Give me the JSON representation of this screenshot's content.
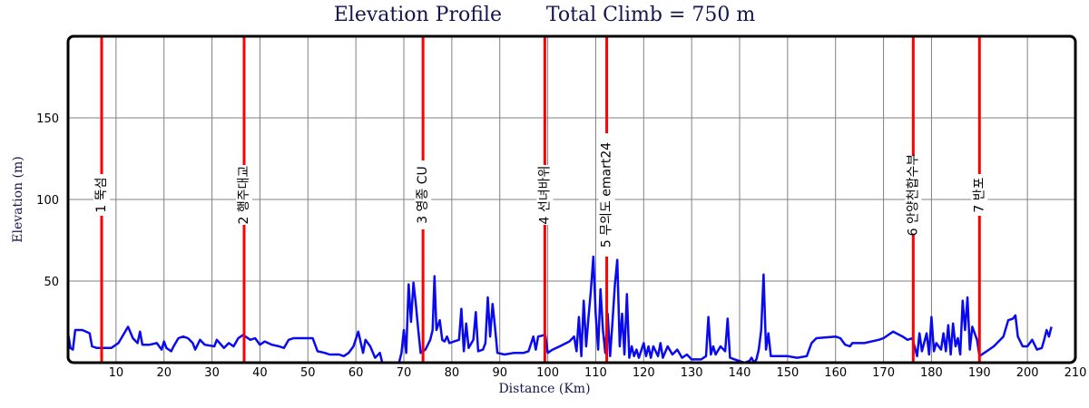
{
  "chart_data": {
    "type": "line",
    "title": "Elevation Profile       Total Climb = 750 m",
    "xlabel": "Distance (Km)",
    "ylabel": "Elevation (m)",
    "xlim": [
      0,
      210
    ],
    "ylim": [
      0,
      200
    ],
    "x_ticks": [
      10,
      20,
      30,
      40,
      50,
      60,
      70,
      80,
      90,
      100,
      110,
      120,
      130,
      140,
      150,
      160,
      170,
      180,
      190,
      200,
      210
    ],
    "y_ticks": [
      50,
      100,
      150
    ],
    "grid": true,
    "colors": {
      "line": "#0a0af0",
      "marker": "#ff0000",
      "grid": "#808080",
      "frame": "#000000",
      "text": "#141450"
    },
    "markers": [
      {
        "x": 7,
        "label": "1 뚝섬"
      },
      {
        "x": 36.7,
        "label": "2 행주대교"
      },
      {
        "x": 74,
        "label": "3 영종 CU"
      },
      {
        "x": 99.4,
        "label": "4 선녀바위"
      },
      {
        "x": 112.3,
        "label": "5 무의도 emart24"
      },
      {
        "x": 176.2,
        "label": "6 안양천합수부"
      },
      {
        "x": 190,
        "label": "7 반포"
      }
    ],
    "series": [
      {
        "values": [
          [
            0,
            18
          ],
          [
            0.5,
            9
          ],
          [
            1,
            8
          ],
          [
            1.5,
            20
          ],
          [
            3,
            20
          ],
          [
            4.5,
            18
          ],
          [
            5,
            10
          ],
          [
            6,
            9
          ],
          [
            9,
            9
          ],
          [
            10.5,
            12
          ],
          [
            11.5,
            17
          ],
          [
            12.5,
            22
          ],
          [
            13.5,
            15
          ],
          [
            14.5,
            12
          ],
          [
            15,
            19
          ],
          [
            15.5,
            11
          ],
          [
            17,
            11
          ],
          [
            18.5,
            12
          ],
          [
            19.5,
            8
          ],
          [
            20,
            13
          ],
          [
            20.5,
            9
          ],
          [
            21.5,
            7
          ],
          [
            22,
            10
          ],
          [
            23,
            15
          ],
          [
            24,
            16
          ],
          [
            25,
            15
          ],
          [
            26,
            12
          ],
          [
            26.5,
            8
          ],
          [
            27.5,
            14
          ],
          [
            28.5,
            11
          ],
          [
            30.5,
            10
          ],
          [
            31,
            14
          ],
          [
            32.5,
            9
          ],
          [
            33.5,
            12
          ],
          [
            34.5,
            10
          ],
          [
            35.5,
            15
          ],
          [
            36.5,
            17
          ],
          [
            38,
            14
          ],
          [
            39,
            15
          ],
          [
            40,
            11
          ],
          [
            41,
            13
          ],
          [
            42.5,
            11
          ],
          [
            44,
            10
          ],
          [
            45,
            9
          ],
          [
            46,
            14
          ],
          [
            47,
            15
          ],
          [
            51,
            15
          ],
          [
            52,
            7
          ],
          [
            53.5,
            6
          ],
          [
            54.5,
            5
          ],
          [
            56.5,
            5
          ],
          [
            57.5,
            4
          ],
          [
            58.5,
            6
          ],
          [
            59.5,
            10
          ],
          [
            60.5,
            19
          ],
          [
            61.5,
            6
          ],
          [
            62,
            14
          ],
          [
            63,
            10
          ],
          [
            64,
            3
          ],
          [
            65,
            6
          ],
          [
            65.5,
            0
          ],
          [
            69,
            0
          ],
          [
            69.5,
            6
          ],
          [
            70,
            20
          ],
          [
            70.5,
            6
          ],
          [
            71,
            48
          ],
          [
            71.5,
            25
          ],
          [
            72,
            49
          ],
          [
            72.5,
            36
          ],
          [
            73,
            20
          ],
          [
            73.5,
            6
          ],
          [
            74.5,
            8
          ],
          [
            75.5,
            14
          ],
          [
            76,
            20
          ],
          [
            76.4,
            53
          ],
          [
            76.8,
            20
          ],
          [
            77.5,
            26
          ],
          [
            78,
            14
          ],
          [
            78.5,
            13
          ],
          [
            79,
            16
          ],
          [
            79.5,
            12
          ],
          [
            80.5,
            13
          ],
          [
            81.5,
            14
          ],
          [
            82,
            33
          ],
          [
            82.5,
            7
          ],
          [
            83,
            24
          ],
          [
            83.5,
            9
          ],
          [
            84.5,
            14
          ],
          [
            85,
            31
          ],
          [
            85.5,
            7
          ],
          [
            86.5,
            8
          ],
          [
            87,
            12
          ],
          [
            87.5,
            40
          ],
          [
            88,
            16
          ],
          [
            88.5,
            36
          ],
          [
            89,
            22
          ],
          [
            89.5,
            6
          ],
          [
            91,
            5
          ],
          [
            93,
            6
          ],
          [
            95,
            6
          ],
          [
            96,
            7
          ],
          [
            97,
            16
          ],
          [
            97.5,
            8
          ],
          [
            98,
            16
          ],
          [
            99.5,
            17
          ],
          [
            100,
            6
          ],
          [
            101,
            8
          ],
          [
            102.5,
            10
          ],
          [
            104.5,
            13
          ],
          [
            105.5,
            16
          ],
          [
            106,
            7
          ],
          [
            106.5,
            28
          ],
          [
            107,
            4
          ],
          [
            107.5,
            38
          ],
          [
            108,
            10
          ],
          [
            108.5,
            28
          ],
          [
            109,
            44
          ],
          [
            109.5,
            65
          ],
          [
            110,
            30
          ],
          [
            110.5,
            8
          ],
          [
            111,
            45
          ],
          [
            111.5,
            20
          ],
          [
            112,
            6
          ],
          [
            112.5,
            30
          ],
          [
            113,
            4
          ],
          [
            113.5,
            25
          ],
          [
            114,
            48
          ],
          [
            114.5,
            63
          ],
          [
            115,
            10
          ],
          [
            115.5,
            30
          ],
          [
            116,
            5
          ],
          [
            116.5,
            42
          ],
          [
            117,
            3
          ],
          [
            117.5,
            10
          ],
          [
            118,
            4
          ],
          [
            118.5,
            8
          ],
          [
            119,
            3
          ],
          [
            120,
            12
          ],
          [
            120.5,
            4
          ],
          [
            121,
            10
          ],
          [
            121.5,
            3
          ],
          [
            122,
            10
          ],
          [
            123,
            4
          ],
          [
            123.5,
            12
          ],
          [
            124,
            3
          ],
          [
            125,
            10
          ],
          [
            126,
            5
          ],
          [
            127,
            8
          ],
          [
            128,
            3
          ],
          [
            129,
            5
          ],
          [
            130,
            2
          ],
          [
            132,
            2
          ],
          [
            133,
            4
          ],
          [
            133.5,
            28
          ],
          [
            134,
            5
          ],
          [
            134.5,
            10
          ],
          [
            135,
            5
          ],
          [
            136,
            10
          ],
          [
            137,
            7
          ],
          [
            137.5,
            27
          ],
          [
            138,
            3
          ],
          [
            139,
            2
          ],
          [
            141,
            0
          ],
          [
            142,
            1
          ],
          [
            142.5,
            3
          ],
          [
            143,
            0
          ],
          [
            143.5,
            2
          ],
          [
            144,
            8
          ],
          [
            144.5,
            20
          ],
          [
            145,
            54
          ],
          [
            145.5,
            8
          ],
          [
            146,
            18
          ],
          [
            146.5,
            4
          ],
          [
            147.5,
            4
          ],
          [
            150,
            4
          ],
          [
            152,
            3
          ],
          [
            154,
            4
          ],
          [
            155,
            12
          ],
          [
            156,
            15
          ],
          [
            160,
            16
          ],
          [
            161,
            15
          ],
          [
            162,
            11
          ],
          [
            163,
            10
          ],
          [
            163.5,
            12
          ],
          [
            166,
            12
          ],
          [
            169,
            14
          ],
          [
            170,
            15
          ],
          [
            172,
            19
          ],
          [
            174,
            16
          ],
          [
            175,
            14
          ],
          [
            176,
            15
          ],
          [
            177,
            4
          ],
          [
            177.5,
            18
          ],
          [
            178,
            7
          ],
          [
            179,
            18
          ],
          [
            179.5,
            5
          ],
          [
            180,
            28
          ],
          [
            180.5,
            7
          ],
          [
            181,
            12
          ],
          [
            182,
            8
          ],
          [
            182.5,
            18
          ],
          [
            183,
            7
          ],
          [
            183.5,
            23
          ],
          [
            184,
            5
          ],
          [
            184.5,
            24
          ],
          [
            185,
            10
          ],
          [
            185.5,
            15
          ],
          [
            186,
            5
          ],
          [
            186.5,
            38
          ],
          [
            187,
            20
          ],
          [
            187.5,
            40
          ],
          [
            188,
            8
          ],
          [
            188.5,
            22
          ],
          [
            189,
            18
          ],
          [
            189.5,
            14
          ],
          [
            190,
            4
          ],
          [
            191,
            6
          ],
          [
            192,
            8
          ],
          [
            193,
            10
          ],
          [
            195,
            16
          ],
          [
            196,
            26
          ],
          [
            197,
            27
          ],
          [
            197.5,
            29
          ],
          [
            198,
            16
          ],
          [
            199,
            10
          ],
          [
            200,
            10
          ],
          [
            201,
            14
          ],
          [
            202,
            8
          ],
          [
            203,
            9
          ],
          [
            203.5,
            14
          ],
          [
            204,
            20
          ],
          [
            204.5,
            16
          ],
          [
            205,
            22
          ]
        ]
      }
    ]
  }
}
